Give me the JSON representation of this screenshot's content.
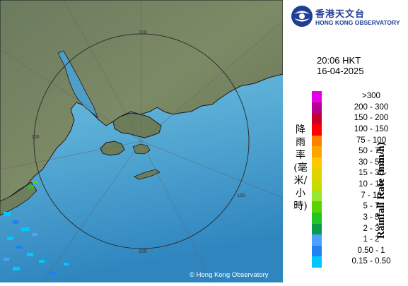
{
  "header": {
    "org_zh": "香港天文台",
    "org_en": "HONG KONG OBSERVATORY"
  },
  "timestamp": {
    "time": "20:06 HKT",
    "date": "16-04-2025"
  },
  "legend": {
    "title_zh": "降雨率(毫米/小時)",
    "title_en": "Rainfall Rate (mm/h)",
    "items": [
      {
        "label": ">300",
        "color": "#e600e6"
      },
      {
        "label": "200 - 300",
        "color": "#b5008f"
      },
      {
        "label": "150 - 200",
        "color": "#c70029"
      },
      {
        "label": "100 - 150",
        "color": "#ff0000"
      },
      {
        "label": "75 - 100",
        "color": "#ff7f00"
      },
      {
        "label": "50 - 75",
        "color": "#ffa500"
      },
      {
        "label": "30 - 50",
        "color": "#ffc800"
      },
      {
        "label": "15 - 30",
        "color": "#e1d200"
      },
      {
        "label": "10 - 15",
        "color": "#c8dc00"
      },
      {
        "label": "7 - 10",
        "color": "#96e632"
      },
      {
        "label": "5 - 7",
        "color": "#5ad200"
      },
      {
        "label": "3 - 5",
        "color": "#22c322"
      },
      {
        "label": "2 - 3",
        "color": "#0c9b4a"
      },
      {
        "label": "1 - 2",
        "color": "#4ea0ff"
      },
      {
        "label": "0.50 - 1",
        "color": "#1e82f0"
      },
      {
        "label": "0.15 - 0.50",
        "color": "#00c8ff"
      }
    ]
  },
  "map": {
    "copyright": "© Hong Kong Observatory",
    "range_labels": [
      "100",
      "100",
      "100",
      "100"
    ]
  }
}
